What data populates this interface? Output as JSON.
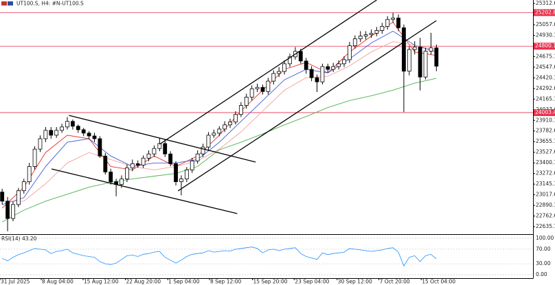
{
  "chart_data": [
    {
      "type": "candlestick",
      "title": "UT100.S, H4:  #N-UT100.S",
      "open": [
        23050,
        22941,
        22733,
        22900,
        23066,
        23174,
        23357,
        23565,
        23690,
        23790,
        23732,
        23790,
        23831,
        23898,
        23840,
        23798,
        23757,
        23723,
        23690,
        23482,
        23291,
        23174,
        23141,
        23207,
        23341,
        23390,
        23374,
        23457,
        23507,
        23573,
        23632,
        23507,
        23390,
        23174,
        23207,
        23316,
        23424,
        23507,
        23590,
        23732,
        23757,
        23806,
        23856,
        23890,
        23981,
        24089,
        24189,
        24289,
        24306,
        24256,
        24381,
        24472,
        24497,
        24589,
        24672,
        24738,
        24622,
        24522,
        24422,
        24372,
        24555,
        24522,
        24555,
        24589,
        24638,
        24805,
        24888,
        24921,
        24938,
        24955,
        24988,
        25038,
        25121,
        25138,
        25021,
        24500,
        24760,
        24790,
        24430,
        24740,
        24780
      ],
      "high": [
        23090,
        22990,
        22940,
        23100,
        23210,
        23400,
        23600,
        23730,
        23830,
        23830,
        23830,
        23870,
        23950,
        23920,
        23860,
        23820,
        23780,
        23760,
        23720,
        23520,
        23330,
        23210,
        23250,
        23380,
        23440,
        23430,
        23490,
        23550,
        23610,
        23700,
        23680,
        23540,
        23420,
        23250,
        23350,
        23460,
        23550,
        23630,
        23770,
        23800,
        23840,
        23900,
        23930,
        24020,
        24130,
        24230,
        24330,
        24350,
        24340,
        24420,
        24510,
        24550,
        24630,
        24710,
        24790,
        24770,
        24660,
        24560,
        24460,
        24590,
        24590,
        24600,
        24630,
        24680,
        24850,
        24930,
        24980,
        24980,
        25000,
        25030,
        25080,
        25160,
        25200,
        25180,
        25060,
        24800,
        24860,
        24900,
        24780,
        24960,
        24820
      ],
      "low": [
        22900,
        22580,
        22700,
        22870,
        23030,
        23140,
        23320,
        23530,
        23650,
        23690,
        23700,
        23760,
        23800,
        23800,
        23760,
        23720,
        23680,
        23650,
        23460,
        23260,
        23140,
        23000,
        23100,
        23170,
        23300,
        23340,
        23340,
        23420,
        23470,
        23540,
        23470,
        23360,
        23130,
        23010,
        23170,
        23280,
        23390,
        23470,
        23550,
        23700,
        23720,
        23770,
        23820,
        23860,
        23950,
        24050,
        24150,
        24250,
        24220,
        24220,
        24340,
        24430,
        24460,
        24550,
        24640,
        24590,
        24470,
        24380,
        24250,
        24340,
        24480,
        24490,
        24520,
        24550,
        24600,
        24770,
        24850,
        24880,
        24900,
        24920,
        24950,
        25000,
        25080,
        24980,
        24010,
        24450,
        24700,
        24270,
        24400,
        24700,
        24500
      ],
      "close": [
        22941,
        22733,
        22900,
        23066,
        23174,
        23357,
        23565,
        23690,
        23790,
        23732,
        23790,
        23831,
        23898,
        23840,
        23798,
        23757,
        23723,
        23690,
        23482,
        23291,
        23174,
        23141,
        23207,
        23341,
        23390,
        23374,
        23457,
        23507,
        23573,
        23632,
        23507,
        23390,
        23174,
        23207,
        23316,
        23424,
        23507,
        23590,
        23732,
        23757,
        23806,
        23856,
        23890,
        23981,
        24089,
        24189,
        24289,
        24306,
        24256,
        24381,
        24472,
        24497,
        24589,
        24672,
        24738,
        24622,
        24522,
        24422,
        24372,
        24555,
        24522,
        24555,
        24589,
        24638,
        24805,
        24888,
        24921,
        24938,
        24955,
        24988,
        25038,
        25121,
        25138,
        25021,
        24500,
        24760,
        24790,
        24430,
        24740,
        24780,
        24560
      ],
      "up_color": "#ffffff",
      "down_color": "#000000",
      "edge_color": "#000000",
      "xlim": [
        -0.4,
        97.8
      ],
      "xticks": [
        {
          "value": -0.4,
          "label": "31 Jul 2025"
        },
        {
          "value": 7.2,
          "label": "8 Aug 04:00"
        },
        {
          "value": 14.9,
          "label": "15 Aug 12:00"
        },
        {
          "value": 22.7,
          "label": "22 Aug 20:00"
        },
        {
          "value": 30.5,
          "label": "1 Sep 04:00"
        },
        {
          "value": 38.2,
          "label": "8 Sep 12:00"
        },
        {
          "value": 46.1,
          "label": "15 Sep 20:00"
        },
        {
          "value": 53.8,
          "label": "23 Sep 04:00"
        },
        {
          "value": 61.7,
          "label": "30 Sep 12:00"
        },
        {
          "value": 69.4,
          "label": "7 Oct 20:00"
        },
        {
          "value": 77.2,
          "label": "15 Oct 04:00"
        }
      ],
      "ylim": [
        22553,
        25354
      ],
      "yticks": [
        25312.6,
        25057.6,
        24930.1,
        24675.1,
        24547.6,
        24420.1,
        24292.6,
        24165.1,
        24037.6,
        23910.1,
        23782.6,
        23655.1,
        23527.6,
        23400.1,
        23272.6,
        23145.1,
        23017.6,
        22890.1,
        22762.6,
        22635.1
      ],
      "hlines": [
        25202.8,
        24800.1,
        24003.4
      ],
      "hline_color": "#e8314d",
      "series": [
        {
          "color": "#e8312a",
          "x": [
            0,
            4,
            8,
            12,
            16,
            20,
            24,
            28,
            32,
            36,
            40,
            44,
            48,
            52,
            56,
            60,
            64,
            68,
            72,
            76,
            80
          ],
          "values": [
            22858,
            23108,
            23524,
            23732,
            23690,
            23357,
            23316,
            23482,
            23357,
            23482,
            23732,
            24023,
            24272,
            24522,
            24605,
            24480,
            24730,
            24921,
            25088,
            24730,
            24688
          ]
        },
        {
          "color": "#3b5bd9",
          "x": [
            0,
            4,
            8,
            12,
            16,
            20,
            24,
            28,
            32,
            36,
            40,
            44,
            48,
            52,
            56,
            60,
            64,
            68,
            72,
            76,
            80
          ],
          "values": [
            22900,
            22983,
            23357,
            23648,
            23690,
            23482,
            23357,
            23399,
            23399,
            23440,
            23648,
            23898,
            24148,
            24397,
            24522,
            24480,
            24647,
            24838,
            24980,
            24813,
            24730
          ]
        },
        {
          "color": "#f4a09a",
          "x": [
            0,
            4,
            8,
            12,
            16,
            20,
            24,
            28,
            32,
            36,
            40,
            44,
            48,
            52,
            56,
            60,
            64,
            68,
            72,
            76,
            80
          ],
          "values": [
            22941,
            22941,
            23150,
            23399,
            23524,
            23440,
            23357,
            23316,
            23357,
            23424,
            23565,
            23773,
            24023,
            24272,
            24422,
            24439,
            24564,
            24730,
            24855,
            24813,
            24755
          ]
        },
        {
          "color": "#4caf50",
          "x": [
            0,
            4,
            8,
            12,
            16,
            20,
            24,
            28,
            32,
            36,
            40,
            44,
            48,
            52,
            56,
            60,
            64,
            68,
            72,
            76,
            80
          ],
          "values": [
            22692,
            22833,
            22941,
            23024,
            23108,
            23166,
            23207,
            23241,
            23274,
            23357,
            23557,
            23648,
            23748,
            23856,
            23956,
            24064,
            24148,
            24206,
            24272,
            24356,
            24414
          ]
        }
      ],
      "trendlines": [
        {
          "x": [
            12.3,
            46.7
          ],
          "y": [
            23970,
            23410
          ]
        },
        {
          "x": [
            9.1,
            43.3
          ],
          "y": [
            23327,
            22792
          ]
        },
        {
          "x": [
            29.0,
            69.0
          ],
          "y": [
            23624,
            25354
          ]
        },
        {
          "x": [
            32.4,
            80.0
          ],
          "y": [
            23064,
            25107
          ]
        }
      ],
      "trendline_color": "#000000"
    },
    {
      "type": "line",
      "title": "RSI(14) 43.20",
      "color": "#1e90ff",
      "values": [
        45,
        38,
        48,
        55,
        60,
        66,
        72,
        70,
        68,
        58,
        64,
        66,
        70,
        60,
        56,
        52,
        50,
        48,
        36,
        30,
        28,
        32,
        42,
        52,
        54,
        50,
        56,
        58,
        62,
        64,
        48,
        40,
        32,
        40,
        50,
        56,
        58,
        60,
        66,
        62,
        64,
        66,
        65,
        70,
        72,
        74,
        76,
        72,
        60,
        68,
        70,
        66,
        70,
        72,
        74,
        58,
        50,
        46,
        42,
        60,
        55,
        58,
        60,
        62,
        72,
        70,
        68,
        66,
        64,
        66,
        68,
        72,
        74,
        62,
        24,
        48,
        52,
        36,
        52,
        56,
        43.2
      ],
      "ylim": [
        -7.4,
        107.4
      ],
      "yticks": [
        {
          "value": 100,
          "label": "100.00"
        },
        {
          "value": 70,
          "label": "70.00"
        },
        {
          "value": 30,
          "label": "30.00"
        },
        {
          "value": 0,
          "label": "0.00"
        }
      ],
      "grid": true
    }
  ]
}
